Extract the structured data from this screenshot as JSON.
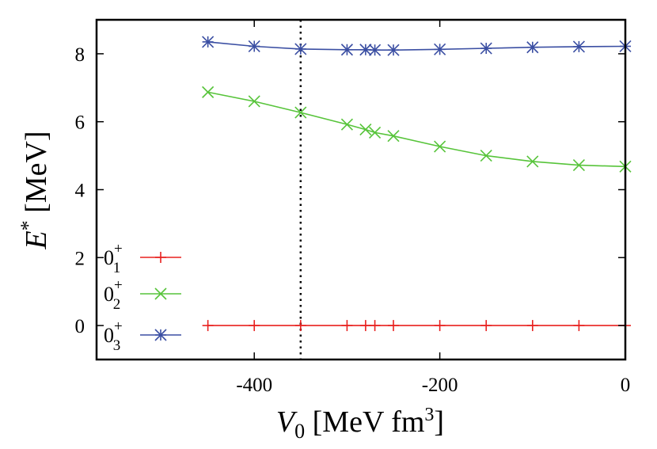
{
  "chart_data": {
    "type": "line",
    "xlabel": {
      "main": "V",
      "sub": "0",
      "rest": " [MeV fm",
      "sup": "3",
      "end": "]"
    },
    "ylabel": {
      "main": "E",
      "sup": "*",
      "rest": " [MeV]"
    },
    "xlim": [
      -570,
      0
    ],
    "ylim": [
      -1,
      9
    ],
    "xticks": [
      -400,
      -200,
      0
    ],
    "xtick_labels": [
      "-400",
      "-200",
      "0"
    ],
    "yticks": [
      0,
      2,
      4,
      6,
      8
    ],
    "ytick_labels": [
      "0",
      "2",
      "4",
      "6",
      "8"
    ],
    "grid": false,
    "legend_position": "bottom-left",
    "vline": {
      "x": -350,
      "style": "dotted"
    },
    "series": [
      {
        "name": "0_1^+",
        "label": {
          "base": "0",
          "sub": "1",
          "sup": "+"
        },
        "color": "#e8211f",
        "marker": "plus",
        "x": [
          -450,
          -400,
          -350,
          -300,
          -280,
          -270,
          -250,
          -200,
          -150,
          -100,
          -50,
          0
        ],
        "y": [
          0,
          0,
          0,
          0,
          0,
          0,
          0,
          0,
          0,
          0,
          0,
          0
        ]
      },
      {
        "name": "0_2^+",
        "label": {
          "base": "0",
          "sub": "2",
          "sup": "+"
        },
        "color": "#57c43a",
        "marker": "cross",
        "x": [
          -450,
          -400,
          -350,
          -300,
          -280,
          -270,
          -250,
          -200,
          -150,
          -100,
          -50,
          0
        ],
        "y": [
          6.87,
          6.6,
          6.27,
          5.92,
          5.77,
          5.68,
          5.58,
          5.27,
          5.0,
          4.83,
          4.72,
          4.68
        ]
      },
      {
        "name": "0_3^+",
        "label": {
          "base": "0",
          "sub": "3",
          "sup": "+"
        },
        "color": "#3b4fa3",
        "marker": "star",
        "x": [
          -450,
          -400,
          -350,
          -300,
          -280,
          -270,
          -250,
          -200,
          -150,
          -100,
          -50,
          0
        ],
        "y": [
          8.35,
          8.22,
          8.14,
          8.12,
          8.12,
          8.11,
          8.11,
          8.13,
          8.16,
          8.19,
          8.21,
          8.22
        ]
      }
    ]
  }
}
